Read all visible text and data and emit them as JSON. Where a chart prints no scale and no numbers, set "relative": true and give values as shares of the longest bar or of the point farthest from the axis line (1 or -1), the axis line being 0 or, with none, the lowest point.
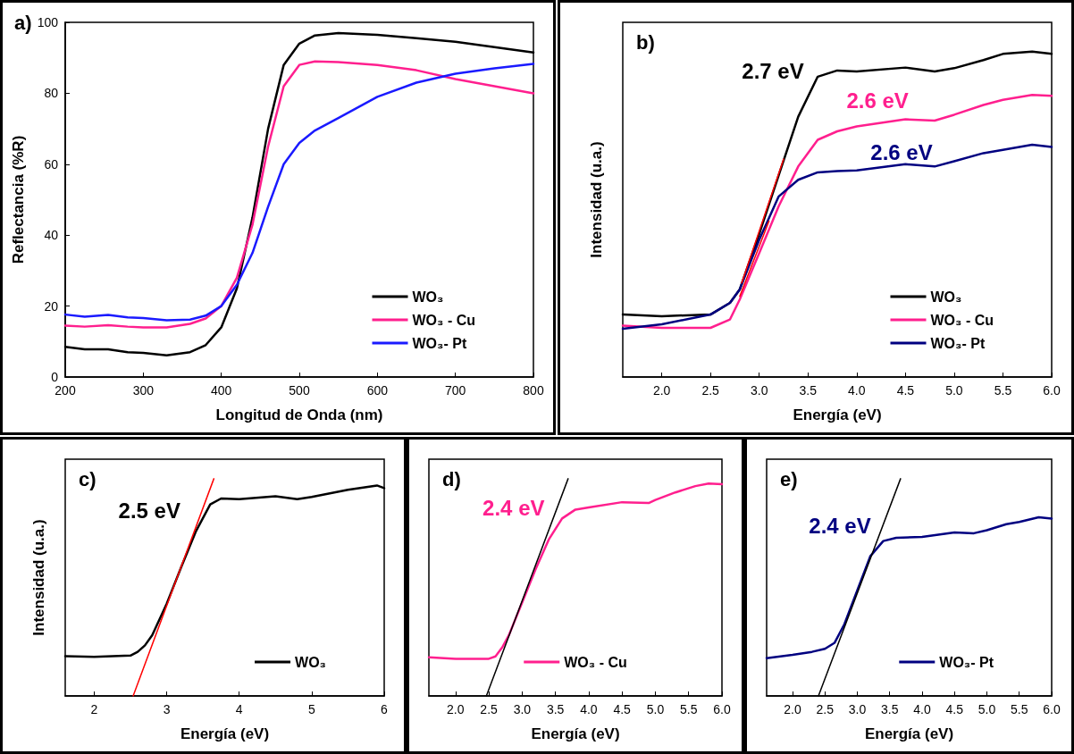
{
  "chart_data": [
    {
      "type": "line",
      "title": "a)",
      "xlabel": "Longitud de Onda (nm)",
      "ylabel": "Reflectancia (%R)",
      "xlim": [
        200,
        800
      ],
      "ylim": [
        0,
        100
      ],
      "xticks": [
        200,
        300,
        400,
        500,
        600,
        700,
        800
      ],
      "yticks": [
        0,
        20,
        40,
        60,
        80,
        100
      ],
      "legend": "bottom right",
      "x": [
        200,
        225,
        255,
        280,
        300,
        330,
        360,
        380,
        400,
        420,
        440,
        460,
        480,
        500,
        520,
        550,
        600,
        650,
        700,
        750,
        800
      ],
      "series": [
        {
          "name": "WO₃",
          "color": "#000000",
          "values": [
            8.5,
            7.8,
            7.8,
            7,
            6.8,
            6.1,
            7,
            9,
            14,
            25,
            45,
            70,
            88,
            94,
            96.3,
            97,
            96.5,
            95.5,
            94.5,
            93,
            91.5
          ]
        },
        {
          "name": "WO₃ - Cu",
          "color": "#ff1f8e",
          "values": [
            14.5,
            14.2,
            14.6,
            14.2,
            14,
            14,
            15,
            16.5,
            20,
            28,
            43,
            65,
            82,
            88,
            89,
            88.8,
            88,
            86.5,
            84,
            82,
            80
          ]
        },
        {
          "name": "WO₃- Pt",
          "color": "#1a1aff",
          "values": [
            17.6,
            17,
            17.5,
            16.8,
            16.6,
            16,
            16.2,
            17.3,
            20,
            26,
            35,
            48,
            60,
            66,
            69.5,
            73,
            79,
            83,
            85.5,
            87,
            88.3
          ]
        }
      ]
    },
    {
      "type": "line",
      "title": "b)",
      "xlabel": "Energía (eV)",
      "ylabel": "Intensidad (u.a.)",
      "relative": true,
      "xlim": [
        1.6,
        6.0
      ],
      "xticks": [
        {
          "value": 2,
          "label": "2.0"
        },
        {
          "value": 2.5,
          "label": "2.5"
        },
        {
          "value": 3,
          "label": "3.0"
        },
        {
          "value": 3.5,
          "label": "3.5"
        },
        {
          "value": 4,
          "label": "4.0"
        },
        {
          "value": 4.5,
          "label": "4.5"
        },
        {
          "value": 5,
          "label": "5.0"
        },
        {
          "value": 5.5,
          "label": "5.5"
        },
        {
          "value": 6,
          "label": "6.0"
        }
      ],
      "legend": "bottom right",
      "x": [
        1.6,
        2.0,
        2.5,
        2.7,
        2.8,
        3.0,
        3.2,
        3.4,
        3.6,
        3.8,
        4.0,
        4.5,
        4.8,
        5.0,
        5.3,
        5.5,
        5.8,
        6.0
      ],
      "series": [
        {
          "name": "WO₃",
          "color": "#000000",
          "values": [
            0.192,
            0.187,
            0.192,
            0.228,
            0.269,
            0.44,
            0.62,
            0.8,
            0.923,
            0.942,
            0.939,
            0.951,
            0.939,
            0.949,
            0.974,
            0.993,
            1.0,
            0.993
          ]
        },
        {
          "name": "WO₃ - Cu",
          "color": "#ff1f8e",
          "values": [
            0.158,
            0.151,
            0.151,
            0.177,
            0.238,
            0.381,
            0.525,
            0.647,
            0.729,
            0.755,
            0.77,
            0.792,
            0.788,
            0.806,
            0.836,
            0.852,
            0.867,
            0.864
          ]
        },
        {
          "name": "WO₃- Pt",
          "color": "#000080",
          "values": [
            0.148,
            0.162,
            0.192,
            0.228,
            0.269,
            0.422,
            0.555,
            0.606,
            0.629,
            0.633,
            0.635,
            0.654,
            0.647,
            0.663,
            0.688,
            0.698,
            0.714,
            0.707
          ]
        },
        {
          "type": "line",
          "color": "#ff0000",
          "x": [
            2.82,
            3.25
          ],
          "values": [
            0.289,
            0.67
          ]
        },
        {
          "type": "line",
          "color": "#ff0000",
          "x": [
            2.8,
            3.1
          ],
          "values": [
            0.248,
            0.479
          ]
        }
      ],
      "annotations": [
        "2.7 eV",
        "2.6 eV",
        "2.6 eV"
      ]
    },
    {
      "type": "line",
      "title": "c)",
      "xlabel": "Energía (eV)",
      "ylabel": "Intensidad (u.a.)",
      "relative": true,
      "xlim": [
        1.6,
        6.0
      ],
      "xticks": [
        2,
        3,
        4,
        5,
        6
      ],
      "legend": "bottom right",
      "x": [
        1.6,
        2.0,
        2.5,
        2.6,
        2.7,
        2.8,
        3.0,
        3.2,
        3.4,
        3.6,
        3.75,
        4.0,
        4.5,
        4.8,
        5.0,
        5.5,
        5.9,
        6.0
      ],
      "series": [
        {
          "name": "WO₃",
          "color": "#000000",
          "values": [
            0.183,
            0.18,
            0.186,
            0.203,
            0.233,
            0.28,
            0.425,
            0.593,
            0.756,
            0.882,
            0.909,
            0.906,
            0.919,
            0.906,
            0.916,
            0.949,
            0.969,
            0.957
          ]
        },
        {
          "type": "line",
          "color": "#ff0000",
          "x": [
            2.537,
            3.65
          ],
          "values": [
            0,
            1
          ]
        }
      ],
      "annotations": [
        "2.5 eV"
      ]
    },
    {
      "type": "line",
      "title": "d)",
      "xlabel": "Energía (eV)",
      "relative": true,
      "xlim": [
        1.6,
        6.0
      ],
      "xticks": [
        {
          "value": 2,
          "label": "2.0"
        },
        {
          "value": 2.5,
          "label": "2.5"
        },
        {
          "value": 3,
          "label": "3.0"
        },
        {
          "value": 3.5,
          "label": "3.5"
        },
        {
          "value": 4,
          "label": "4.0"
        },
        {
          "value": 4.5,
          "label": "4.5"
        },
        {
          "value": 5,
          "label": "5.0"
        },
        {
          "value": 5.5,
          "label": "5.5"
        },
        {
          "value": 6,
          "label": "6.0"
        }
      ],
      "legend": "bottom",
      "x": [
        1.6,
        2.0,
        2.5,
        2.6,
        2.7,
        2.8,
        3.0,
        3.2,
        3.4,
        3.6,
        3.8,
        4.0,
        4.5,
        4.9,
        5.0,
        5.3,
        5.6,
        5.8,
        6.0
      ],
      "series": [
        {
          "name": "WO₃ - Cu",
          "color": "#ff1f8e",
          "values": [
            0.178,
            0.171,
            0.171,
            0.182,
            0.223,
            0.279,
            0.43,
            0.582,
            0.72,
            0.817,
            0.858,
            0.868,
            0.892,
            0.888,
            0.902,
            0.937,
            0.966,
            0.978,
            0.975
          ]
        },
        {
          "type": "line",
          "color": "#000000",
          "x": [
            2.463,
            3.69
          ],
          "values": [
            0,
            1
          ]
        }
      ],
      "annotations": [
        "2.4 eV"
      ]
    },
    {
      "type": "line",
      "title": "e)",
      "xlabel": "Energía (eV)",
      "relative": true,
      "xlim": [
        1.6,
        6.0
      ],
      "xticks": [
        {
          "value": 2,
          "label": "2.0"
        },
        {
          "value": 2.5,
          "label": "2.5"
        },
        {
          "value": 3,
          "label": "3.0"
        },
        {
          "value": 3.5,
          "label": "3.5"
        },
        {
          "value": 4,
          "label": "4.0"
        },
        {
          "value": 4.5,
          "label": "4.5"
        },
        {
          "value": 5,
          "label": "5.0"
        },
        {
          "value": 5.5,
          "label": "5.5"
        },
        {
          "value": 6,
          "label": "6.0"
        }
      ],
      "legend": "bottom right",
      "x": [
        1.6,
        2.0,
        2.3,
        2.5,
        2.65,
        2.8,
        3.0,
        3.2,
        3.4,
        3.6,
        4.0,
        4.5,
        4.8,
        5.0,
        5.3,
        5.5,
        5.8,
        6.0
      ],
      "series": [
        {
          "name": "WO₃- Pt",
          "color": "#000080",
          "values": [
            0.174,
            0.189,
            0.203,
            0.217,
            0.245,
            0.33,
            0.487,
            0.643,
            0.713,
            0.728,
            0.732,
            0.753,
            0.749,
            0.763,
            0.791,
            0.801,
            0.823,
            0.816
          ]
        },
        {
          "type": "line",
          "color": "#000000",
          "x": [
            2.4,
            3.667
          ],
          "values": [
            0,
            1
          ]
        }
      ],
      "annotations": [
        "2.4 eV"
      ]
    }
  ]
}
